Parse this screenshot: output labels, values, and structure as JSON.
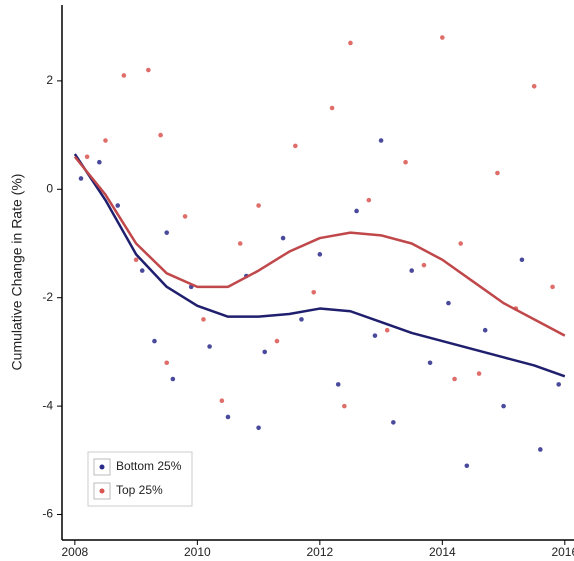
{
  "chart_data": {
    "type": "scatter",
    "ylabel": "Cumulative Change in Rate (%)",
    "xlim": [
      2007.79,
      2016.15
    ],
    "ylim": [
      -6.47,
      3.4
    ],
    "xticks": [
      2008,
      2010,
      2012,
      2014,
      2016
    ],
    "yticks": [
      -6,
      -4,
      -2,
      0,
      2
    ],
    "legend": "bottom-left",
    "trend_x": [
      2008,
      2008.5,
      2009,
      2009.5,
      2010,
      2010.5,
      2011,
      2011.5,
      2012,
      2012.5,
      2013,
      2013.5,
      2014,
      2014.5,
      2015,
      2015.5,
      2016
    ],
    "series": [
      {
        "name": "Bottom 25%",
        "color": "#2a2a8c",
        "trend_color": "#1f1f6e",
        "x": [
          2008.1,
          2008.4,
          2008.7,
          2009.1,
          2009.3,
          2009.6,
          2009.9,
          2010.2,
          2010.5,
          2010.8,
          2011.1,
          2011.4,
          2011.7,
          2012.0,
          2012.3,
          2012.6,
          2012.9,
          2013.2,
          2013.5,
          2013.8,
          2014.1,
          2014.4,
          2014.7,
          2015.0,
          2015.3,
          2015.6,
          2015.9,
          2009.5,
          2011.0,
          2013.0
        ],
        "values": [
          0.2,
          0.5,
          -0.3,
          -1.5,
          -2.8,
          -3.5,
          -1.8,
          -2.9,
          -4.2,
          -1.6,
          -3.0,
          -0.9,
          -2.4,
          -1.2,
          -3.6,
          -0.4,
          -2.7,
          -4.3,
          -1.5,
          -3.2,
          -2.1,
          -5.1,
          -2.6,
          -4.0,
          -1.3,
          -4.8,
          -3.6,
          -0.8,
          -4.4,
          0.9
        ],
        "trend": [
          0.65,
          -0.2,
          -1.2,
          -1.8,
          -2.15,
          -2.35,
          -2.35,
          -2.3,
          -2.2,
          -2.25,
          -2.45,
          -2.65,
          -2.8,
          -2.95,
          -3.1,
          -3.25,
          -3.45
        ]
      },
      {
        "name": "Top 25%",
        "color": "#d9534f",
        "trend_color": "#c0474a",
        "x": [
          2008.2,
          2008.5,
          2008.8,
          2009.0,
          2009.2,
          2009.5,
          2009.8,
          2010.1,
          2010.4,
          2010.7,
          2011.0,
          2011.3,
          2011.6,
          2011.9,
          2012.2,
          2012.5,
          2012.8,
          2013.1,
          2013.4,
          2013.7,
          2014.0,
          2014.3,
          2014.6,
          2014.9,
          2015.2,
          2015.5,
          2015.8,
          2009.4,
          2012.4,
          2014.2
        ],
        "values": [
          0.6,
          0.9,
          2.1,
          -1.3,
          2.2,
          -3.2,
          -0.5,
          -2.4,
          -3.9,
          -1.0,
          -0.3,
          -2.8,
          0.8,
          -1.9,
          1.5,
          2.7,
          -0.2,
          -2.6,
          0.5,
          -1.4,
          2.8,
          -1.0,
          -3.4,
          0.3,
          -2.2,
          1.9,
          -1.8,
          1.0,
          -4.0,
          -3.5
        ],
        "trend": [
          0.6,
          -0.1,
          -1.0,
          -1.55,
          -1.8,
          -1.8,
          -1.5,
          -1.15,
          -0.9,
          -0.8,
          -0.85,
          -1.0,
          -1.3,
          -1.7,
          -2.1,
          -2.4,
          -2.7
        ]
      }
    ]
  }
}
